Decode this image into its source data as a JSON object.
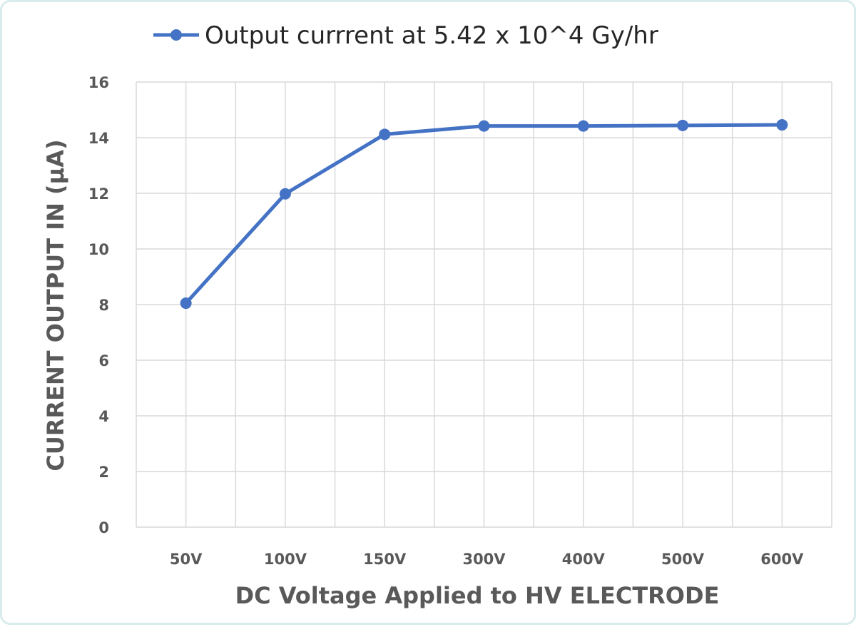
{
  "chart_data": {
    "type": "line",
    "categories": [
      "50V",
      "100V",
      "150V",
      "300V",
      "400V",
      "500V",
      "600V"
    ],
    "series": [
      {
        "name": "Output currrent at 5.42 x 10^4 Gy/hr",
        "values": [
          8.05,
          11.98,
          14.12,
          14.42,
          14.42,
          14.44,
          14.46
        ],
        "color": "#4472c4"
      }
    ],
    "title": "",
    "xlabel": "DC Voltage Applied to HV ELECTRODE",
    "ylabel": "CURRENT OUTPUT IN (μA)",
    "ylim": [
      0,
      16
    ],
    "yticks": [
      0,
      2,
      4,
      6,
      8,
      10,
      12,
      14,
      16
    ],
    "grid": true,
    "legend": "top"
  }
}
